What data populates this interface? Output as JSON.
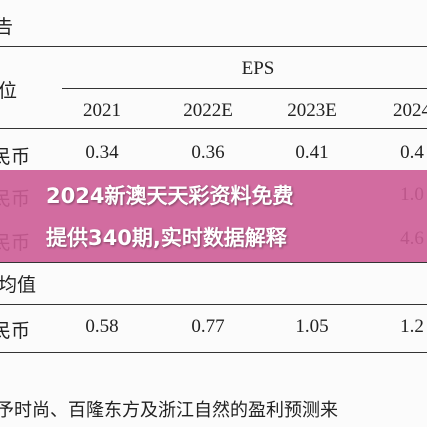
{
  "table": {
    "corner": "告",
    "unit_label": "位",
    "group_header": "EPS",
    "columns": [
      "2021",
      "2022E",
      "2023E",
      "2024"
    ],
    "rows": [
      [
        "民币",
        "0.34",
        "0.36",
        "0.41",
        "0.4"
      ],
      [
        "民币",
        "",
        "",
        "",
        "1.0"
      ],
      [
        "民币",
        "",
        "",
        "",
        "4.6"
      ],
      [
        "均值",
        "",
        "",
        "",
        ""
      ],
      [
        "民币",
        "0.58",
        "0.77",
        "1.05",
        "1.2"
      ]
    ],
    "footnote": "予时尚、百隆东方及浙江自然的盈利预测来"
  },
  "banner": {
    "line1": "2024新澳天天彩资料免费",
    "line2": "提供340期,实时数据解释"
  }
}
